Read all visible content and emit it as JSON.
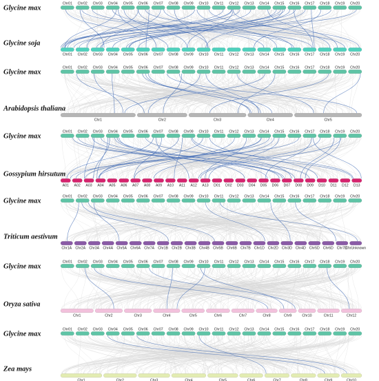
{
  "colors": {
    "background_link": "#d9d9d9",
    "highlight_link": "#4a72b8",
    "glycine_max": "#5fc4a6",
    "glycine_soja": "#4fd1bd",
    "arabidopsis": "#b5b5b5",
    "gossypium": "#d6246e",
    "triticum": "#8a5aa6",
    "oryza": "#f2c1dc",
    "zea": "#e3ecb2"
  },
  "panels": [
    {
      "top": {
        "species": "Glycine max",
        "color_key": "glycine_max",
        "chromosomes": [
          "Chr01",
          "Chr02",
          "Chr03",
          "Chr04",
          "Chr05",
          "Chr06",
          "Chr07",
          "Chr08",
          "Chr09",
          "Chr10",
          "Chr11",
          "Chr12",
          "Chr13",
          "Chr14",
          "Chr15",
          "Chr16",
          "Chr17",
          "Chr18",
          "Chr19",
          "Chr20"
        ]
      },
      "bottom": {
        "species": "Glycine soja",
        "color_key": "glycine_soja",
        "chromosomes": [
          "Chr01",
          "Chr02",
          "Chr03",
          "Chr04",
          "Chr05",
          "Chr06",
          "Chr07",
          "Chr08",
          "Chr09",
          "Chr10",
          "Chr11",
          "Chr12",
          "Chr13",
          "Chr14",
          "Chr15",
          "Chr16",
          "Chr17",
          "Chr18",
          "Chr19",
          "Chr20"
        ]
      }
    },
    {
      "top": {
        "species": "Glycine max",
        "color_key": "glycine_max",
        "chromosomes": [
          "Chr01",
          "Chr02",
          "Chr03",
          "Chr04",
          "Chr05",
          "Chr06",
          "Chr07",
          "Chr08",
          "Chr09",
          "Chr10",
          "Chr11",
          "Chr12",
          "Chr13",
          "Chr14",
          "Chr15",
          "Chr16",
          "Chr17",
          "Chr18",
          "Chr19",
          "Chr20"
        ]
      },
      "bottom": {
        "species": "Arabidopsis thaliana",
        "color_key": "arabidopsis",
        "chromosomes": [
          "Chr1",
          "Chr2",
          "Chr3",
          "Chr4",
          "Chr5"
        ]
      }
    },
    {
      "top": {
        "species": "Glycine max",
        "color_key": "glycine_max",
        "chromosomes": [
          "Chr01",
          "Chr02",
          "Chr03",
          "Chr04",
          "Chr05",
          "Chr06",
          "Chr07",
          "Chr08",
          "Chr09",
          "Chr10",
          "Chr11",
          "Chr12",
          "Chr13",
          "Chr14",
          "Chr15",
          "Chr16",
          "Chr17",
          "Chr18",
          "Chr19",
          "Chr20"
        ]
      },
      "bottom": {
        "species": "Gossypium hirsutum",
        "color_key": "gossypium",
        "chromosomes": [
          "A01",
          "A02",
          "A03",
          "A04",
          "A05",
          "A06",
          "A07",
          "A08",
          "A09",
          "A10",
          "A11",
          "A12",
          "A13",
          "D01",
          "D02",
          "D03",
          "D04",
          "D05",
          "D06",
          "D07",
          "D08",
          "D09",
          "D10",
          "D11",
          "D12",
          "D13"
        ]
      }
    },
    {
      "top": {
        "species": "Glycine max",
        "color_key": "glycine_max",
        "chromosomes": [
          "Chr01",
          "Chr02",
          "Chr03",
          "Chr04",
          "Chr05",
          "Chr06",
          "Chr07",
          "Chr08",
          "Chr09",
          "Chr10",
          "Chr11",
          "Chr12",
          "Chr13",
          "Chr14",
          "Chr15",
          "Chr16",
          "Chr17",
          "Chr18",
          "Chr19",
          "Chr20"
        ]
      },
      "bottom": {
        "species": "Triticum aestivum",
        "color_key": "triticum",
        "chromosomes": [
          "Chr1A",
          "Chr2A",
          "Chr3A",
          "Chr4A",
          "Chr5A",
          "Chr6A",
          "Chr7A",
          "Chr1B",
          "Chr2B",
          "Chr3B",
          "Chr4B",
          "Chr5B",
          "Chr6B",
          "Chr7B",
          "Chr1D",
          "Chr2D",
          "Chr3D",
          "Chr4D",
          "Chr5D",
          "Chr6D",
          "Chr7D",
          "ChrUnknown"
        ]
      }
    },
    {
      "top": {
        "species": "Glycine max",
        "color_key": "glycine_max",
        "chromosomes": [
          "Chr01",
          "Chr02",
          "Chr03",
          "Chr04",
          "Chr05",
          "Chr06",
          "Chr07",
          "Chr08",
          "Chr09",
          "Chr10",
          "Chr11",
          "Chr12",
          "Chr13",
          "Chr14",
          "Chr15",
          "Chr16",
          "Chr17",
          "Chr18",
          "Chr19",
          "Chr20"
        ]
      },
      "bottom": {
        "species": "Oryza sativa",
        "color_key": "oryza",
        "chromosomes": [
          "Chr1",
          "Chr2",
          "Chr3",
          "Chr4",
          "Chr5",
          "Chr6",
          "Chr7",
          "Chr8",
          "Chr9",
          "Chr10",
          "Chr11",
          "Chr12"
        ]
      }
    },
    {
      "top": {
        "species": "Glycine max",
        "color_key": "glycine_max",
        "chromosomes": [
          "Chr01",
          "Chr02",
          "Chr03",
          "Chr04",
          "Chr05",
          "Chr06",
          "Chr07",
          "Chr08",
          "Chr09",
          "Chr10",
          "Chr11",
          "Chr12",
          "Chr13",
          "Chr14",
          "Chr15",
          "Chr16",
          "Chr17",
          "Chr18",
          "Chr19",
          "Chr20"
        ]
      },
      "bottom": {
        "species": "Zea mays",
        "color_key": "zea",
        "chromosomes": [
          "Chr1",
          "Chr2",
          "Chr3",
          "Chr4",
          "Chr5",
          "Chr6",
          "Chr7",
          "Chr8",
          "Chr9",
          "Chr10"
        ]
      }
    }
  ]
}
